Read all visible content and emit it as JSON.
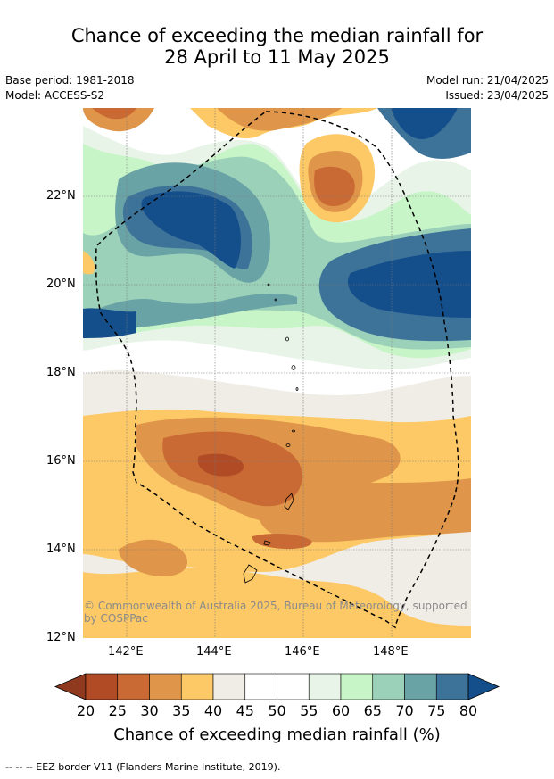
{
  "title": {
    "line1": "Chance of exceeding the median rainfall for",
    "line2": "28 April to 11 May 2025"
  },
  "meta": {
    "base_period": "Base period: 1981-2018",
    "model": "Model: ACCESS-S2",
    "model_run": "Model run: 21/04/2025",
    "issued": "Issued: 23/04/2025"
  },
  "map": {
    "lat_labels": [
      "22°N",
      "20°N",
      "18°N",
      "16°N",
      "14°N",
      "12°N"
    ],
    "lon_labels": [
      "142°E",
      "144°E",
      "146°E",
      "148°E"
    ],
    "copyright_line1": "© Commonwealth of Australia 2025, Bureau of Meteorology, supported",
    "copyright_line2": "by COSPPac"
  },
  "colorbar": {
    "labels": [
      "20",
      "25",
      "30",
      "35",
      "40",
      "45",
      "50",
      "55",
      "60",
      "65",
      "70",
      "75",
      "80"
    ],
    "colors": [
      "#8f3a1e",
      "#b04b26",
      "#c96a35",
      "#e0964a",
      "#fdc966",
      "#f0ece6",
      "#ffffff",
      "#ffffff",
      "#e8f4e8",
      "#c8f5c8",
      "#9bd1b9",
      "#6aa3a6",
      "#3e7399",
      "#144f8c"
    ],
    "title": "Chance of exceeding median rainfall (%)"
  },
  "footnote": "--  --  -- EEZ border V11 (Flanders Marine Institute, 2019)."
}
